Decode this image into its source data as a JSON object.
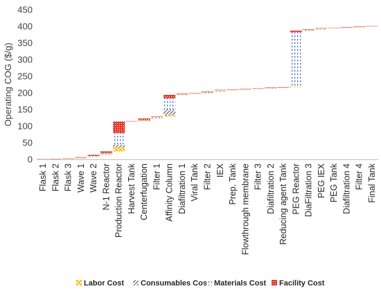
{
  "chart_data": {
    "type": "bar",
    "subtype": "stacked-waterfall",
    "ylabel": "Operating COG ($/g)",
    "ylim": [
      0,
      450
    ],
    "yticks": [
      0,
      50,
      100,
      150,
      200,
      250,
      300,
      350,
      400,
      450
    ],
    "grid": false,
    "legend_position": "bottom",
    "series": [
      {
        "name": "Labor Cost",
        "color": "#f5b800",
        "pattern": "cross"
      },
      {
        "name": "Consumables Cost",
        "color": "#404040",
        "pattern": "diagonal"
      },
      {
        "name": "Materials Cost",
        "color": "#4472c4",
        "pattern": "dots"
      },
      {
        "name": "Facility Cost",
        "color": "#e23b2e",
        "pattern": "dense"
      }
    ],
    "steps": [
      {
        "name": "Flask 1",
        "labor": 0.3,
        "consumables": 0.2,
        "materials": 0.2,
        "facility": 0.3
      },
      {
        "name": "Flask 2",
        "labor": 0.3,
        "consumables": 0.2,
        "materials": 0.2,
        "facility": 0.3
      },
      {
        "name": "Flask 3",
        "labor": 0.3,
        "consumables": 0.2,
        "materials": 0.2,
        "facility": 0.3
      },
      {
        "name": "Wave 1",
        "labor": 0.6,
        "consumables": 1.2,
        "materials": 0.8,
        "facility": 1.4
      },
      {
        "name": "Wave 2",
        "labor": 1.0,
        "consumables": 1.5,
        "materials": 1.0,
        "facility": 3.5
      },
      {
        "name": "N-1 Reactor",
        "labor": 1.0,
        "consumables": 1.5,
        "materials": 2.0,
        "facility": 5.5
      },
      {
        "name": "Production Reactor",
        "labor": 12,
        "consumables": 8,
        "materials": 35,
        "facility": 35
      },
      {
        "name": "Harvest Tank",
        "labor": 0.2,
        "consumables": 0.1,
        "materials": 0.1,
        "facility": 0.6
      },
      {
        "name": "Centerfugation",
        "labor": 0.8,
        "consumables": 1.0,
        "materials": 1.0,
        "facility": 5.2
      },
      {
        "name": "Filter 1",
        "labor": 0.5,
        "consumables": 3.0,
        "materials": 1.0,
        "facility": 1.5
      },
      {
        "name": "Affinity Column",
        "labor": 3,
        "consumables": 17,
        "materials": 35,
        "facility": 10
      },
      {
        "name": "Diafiltration 1",
        "labor": 0.5,
        "consumables": 1.0,
        "materials": 1.0,
        "facility": 1.5
      },
      {
        "name": "Viral Tank",
        "labor": 0.2,
        "consumables": 0.1,
        "materials": 0.2,
        "facility": 0.5
      },
      {
        "name": "Filter 2",
        "labor": 0.5,
        "consumables": 2.0,
        "materials": 1.0,
        "facility": 1.5
      },
      {
        "name": "IEX",
        "labor": 0.5,
        "consumables": 1.0,
        "materials": 2.0,
        "facility": 1.5
      },
      {
        "name": "Prep. Tank",
        "labor": 0.2,
        "consumables": 0.1,
        "materials": 0.2,
        "facility": 0.5
      },
      {
        "name": "Flowthrough membrane",
        "labor": 0.3,
        "consumables": 0.7,
        "materials": 0.5,
        "facility": 0.5
      },
      {
        "name": "Filter 3",
        "labor": 0.3,
        "consumables": 1.0,
        "materials": 0.2,
        "facility": 0.5
      },
      {
        "name": "Diafiltration 2",
        "labor": 0.3,
        "consumables": 0.5,
        "materials": 0.7,
        "facility": 0.5
      },
      {
        "name": "Reducing agent Tank",
        "labor": 0.2,
        "consumables": 0.1,
        "materials": 0.2,
        "facility": 0.5
      },
      {
        "name": "PEG Reactor",
        "labor": 1,
        "consumables": 1,
        "materials": 163,
        "facility": 5
      },
      {
        "name": "DiaFiltration 3",
        "labor": 0.5,
        "consumables": 1.0,
        "materials": 1.0,
        "facility": 1.5
      },
      {
        "name": "PEG IEX",
        "labor": 0.5,
        "consumables": 1.0,
        "materials": 1.5,
        "facility": 1.0
      },
      {
        "name": "PEG Tank",
        "labor": 0.2,
        "consumables": 0.1,
        "materials": 0.2,
        "facility": 0.5
      },
      {
        "name": "Diafiltration 4",
        "labor": 0.3,
        "consumables": 0.5,
        "materials": 0.7,
        "facility": 0.5
      },
      {
        "name": "Filter 4",
        "labor": 0.3,
        "consumables": 0.7,
        "materials": 0.5,
        "facility": 0.5
      },
      {
        "name": "Final Tank",
        "labor": 0.2,
        "consumables": 0.1,
        "materials": 0.2,
        "facility": 0.5
      }
    ]
  }
}
